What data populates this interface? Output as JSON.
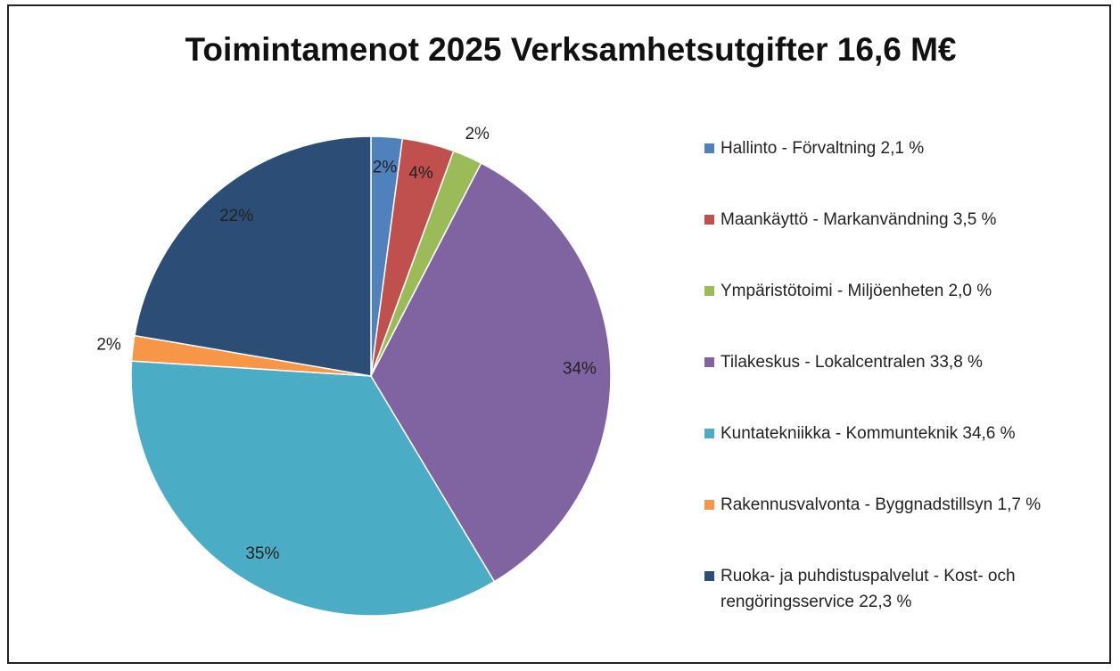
{
  "chart_data": {
    "type": "pie",
    "title": "Toimintamenot 2025 Verksamhetsutgifter 16,6 M€",
    "categories": [
      "Hallinto - Förvaltning  2,1 %",
      "Maankäyttö - Markanvändning  3,5 %",
      "Ympäristötoimi - Miljöenheten 2,0 %",
      "Tilakeskus -  Lokalcentralen 33,8 %",
      "Kuntatekniikka - Kommunteknik  34,6 %",
      "Rakennusvalvonta - Byggnadstillsyn 1,7 %",
      "Ruoka- ja puhdistuspalvelut - Kost- och rengöringsservice 22,3 %"
    ],
    "values": [
      2.1,
      3.5,
      2.0,
      33.8,
      34.6,
      1.7,
      22.3
    ],
    "value_labels": [
      "2%",
      "4%",
      "2%",
      "34%",
      "35%",
      "2%",
      "22%"
    ],
    "colors": [
      "#4f81bd",
      "#c0504d",
      "#9bbb59",
      "#8064a2",
      "#4bacc6",
      "#f79646",
      "#2c4d75"
    ],
    "legend": "right"
  }
}
